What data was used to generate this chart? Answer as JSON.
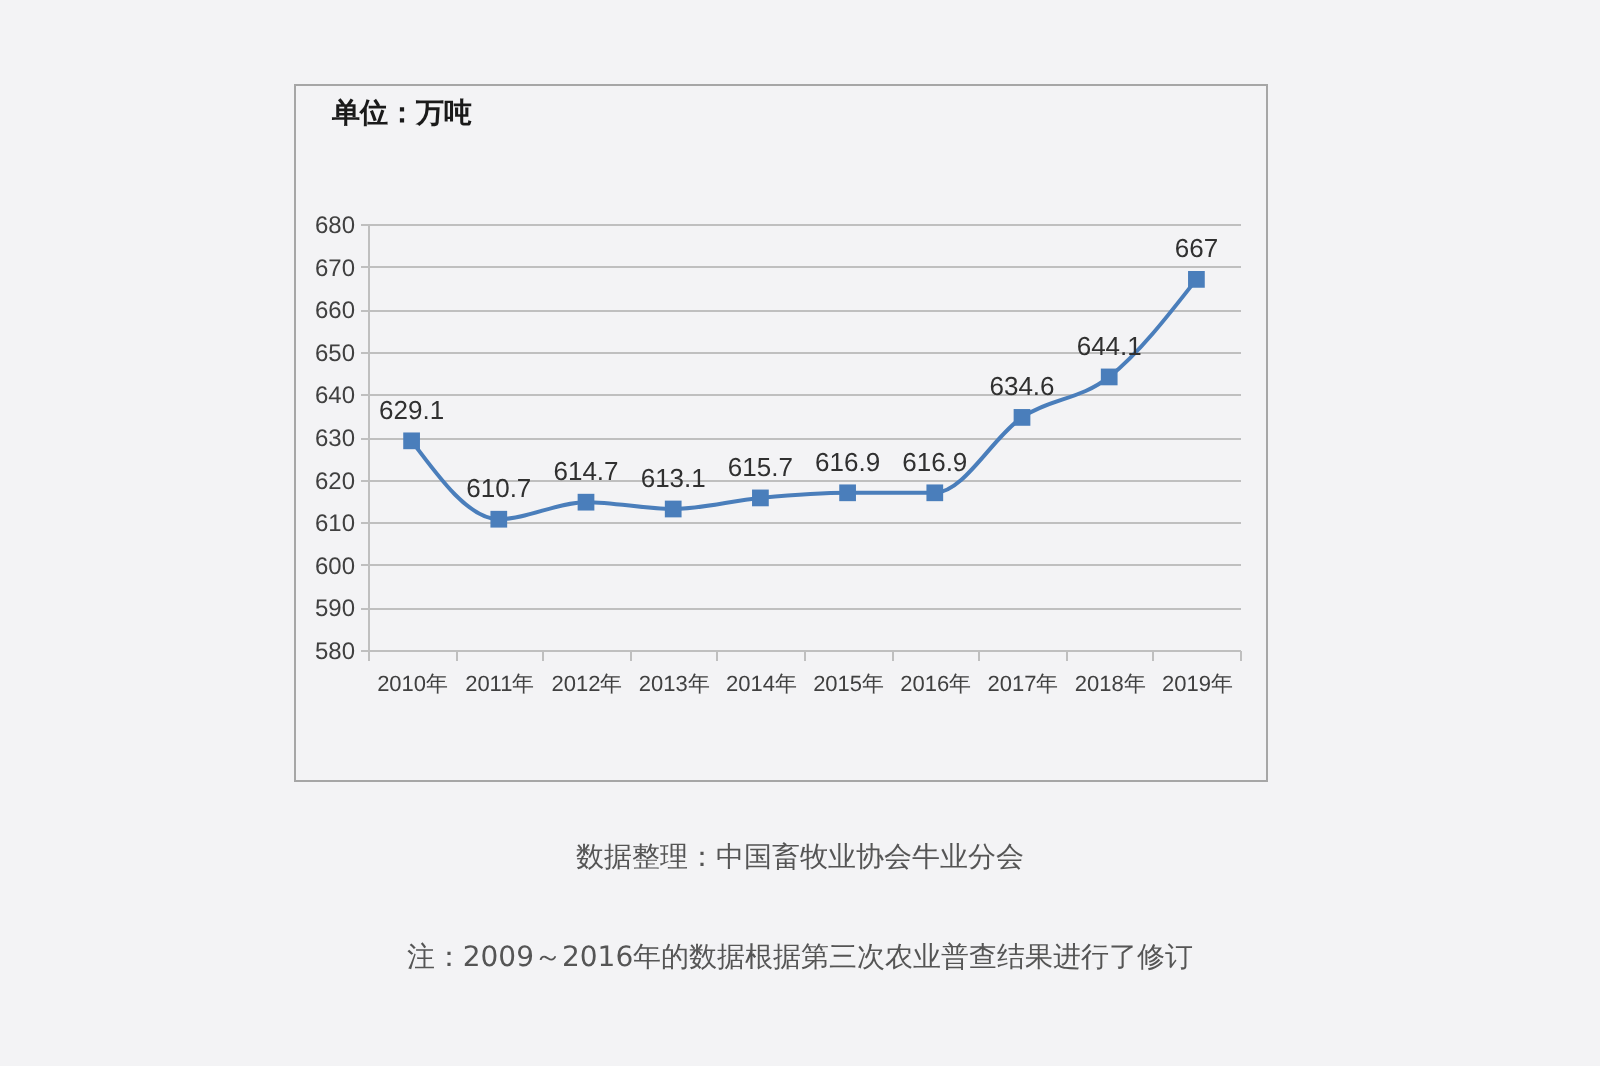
{
  "chart_data": {
    "type": "line",
    "title": "单位：万吨",
    "categories": [
      "2010年",
      "2011年",
      "2012年",
      "2013年",
      "2014年",
      "2015年",
      "2016年",
      "2017年",
      "2018年",
      "2019年"
    ],
    "series": [
      {
        "color": "#4a7ebb",
        "values": [
          629.1,
          610.7,
          614.7,
          613.1,
          615.7,
          616.9,
          616.9,
          634.6,
          644.1,
          667
        ]
      }
    ],
    "ylim": [
      580,
      680
    ],
    "yticks": [
      580,
      590,
      600,
      610,
      620,
      630,
      640,
      650,
      660,
      670,
      680
    ],
    "grid": "y",
    "marker": "square",
    "data_labels": true,
    "annotations": [
      "数据整理：中国畜牧业协会牛业分会",
      "注：2009～2016年的数据根据第三次农业普查结果进行了修订"
    ]
  }
}
